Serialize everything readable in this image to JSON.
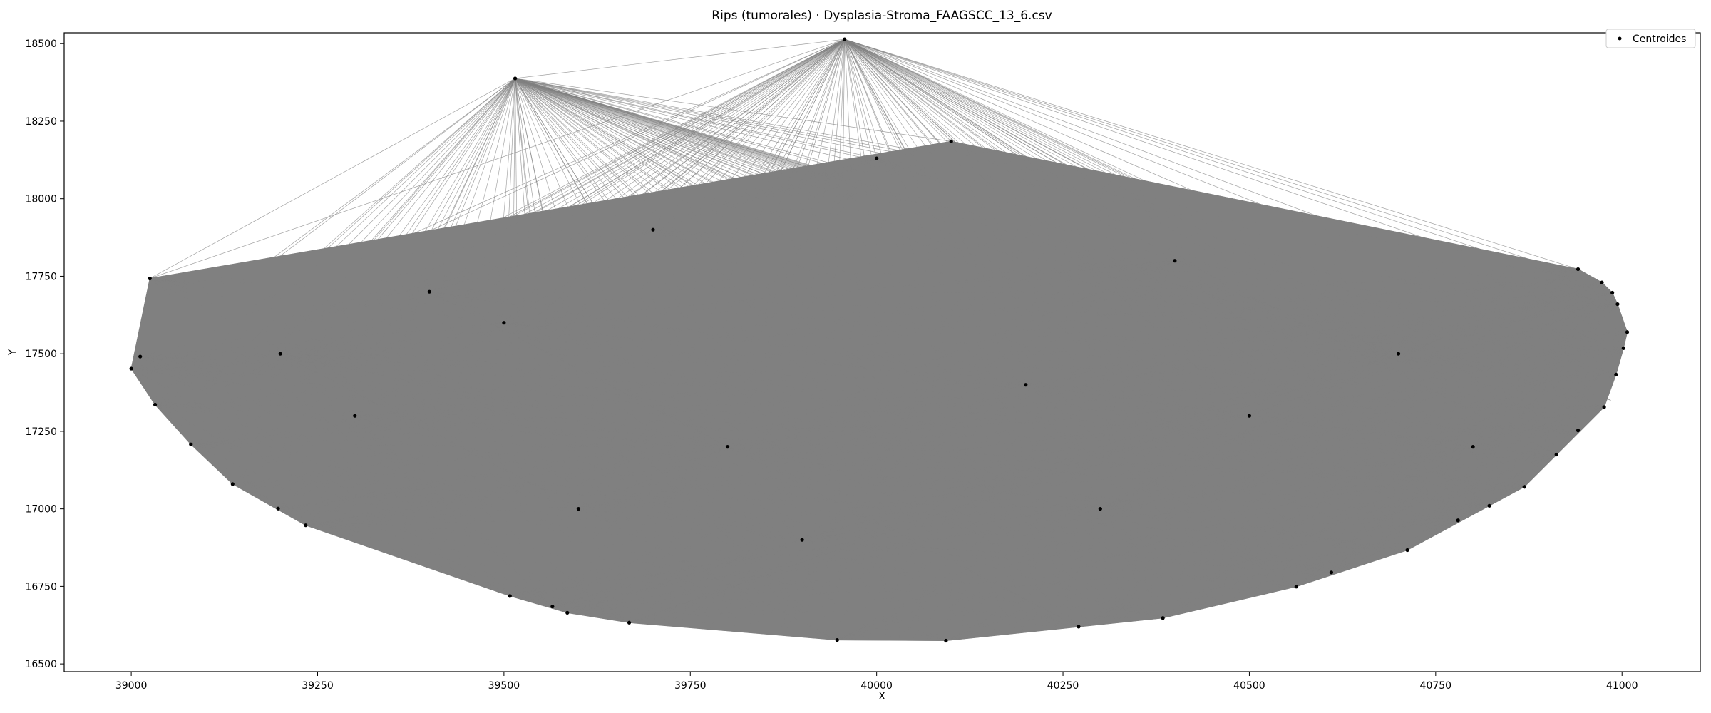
{
  "chart_data": {
    "type": "scatter",
    "title": "Rips (tumorales) · Dysplasia-Stroma_FAAGSCC_13_6.csv",
    "xlabel": "X",
    "ylabel": "Y",
    "xlim": [
      38910,
      41105
    ],
    "ylim": [
      16475,
      18535
    ],
    "xticks": [
      39000,
      39250,
      39500,
      39750,
      40000,
      40250,
      40500,
      40750,
      41000
    ],
    "yticks": [
      16500,
      16750,
      17000,
      17250,
      17500,
      17750,
      18000,
      18250,
      18500
    ],
    "grid": false,
    "legend": {
      "position": "top-right",
      "entries": [
        "Centroides"
      ]
    },
    "colors": {
      "points": "#000000",
      "edges": "#808080",
      "fill": "#808080"
    },
    "series": [
      {
        "name": "Centroides",
        "points": [
          [
            39957,
            18514
          ],
          [
            39515,
            18388
          ],
          [
            39025,
            17743
          ],
          [
            39012,
            17491
          ],
          [
            39000,
            17452
          ],
          [
            39032,
            17336
          ],
          [
            39080,
            17208
          ],
          [
            39136,
            17080
          ],
          [
            39197,
            17001
          ],
          [
            39234,
            16947
          ],
          [
            39508,
            16719
          ],
          [
            39565,
            16685
          ],
          [
            39585,
            16665
          ],
          [
            39668,
            16633
          ],
          [
            39947,
            16577
          ],
          [
            40093,
            16575
          ],
          [
            40271,
            16620
          ],
          [
            40384,
            16648
          ],
          [
            40563,
            16749
          ],
          [
            40610,
            16795
          ],
          [
            40712,
            16867
          ],
          [
            40780,
            16963
          ],
          [
            40822,
            17010
          ],
          [
            40869,
            17071
          ],
          [
            40912,
            17175
          ],
          [
            40941,
            17253
          ],
          [
            40976,
            17328
          ],
          [
            40992,
            17433
          ],
          [
            41002,
            17518
          ],
          [
            41007,
            17570
          ],
          [
            40994,
            17660
          ],
          [
            40987,
            17697
          ],
          [
            40973,
            17730
          ],
          [
            40941,
            17773
          ],
          [
            40100,
            18185
          ],
          [
            40000,
            18130
          ],
          [
            39700,
            17900
          ],
          [
            39500,
            17600
          ],
          [
            39300,
            17300
          ],
          [
            39800,
            17200
          ],
          [
            40200,
            17400
          ],
          [
            40500,
            17300
          ],
          [
            40700,
            17500
          ],
          [
            39900,
            16900
          ],
          [
            40300,
            17000
          ],
          [
            39600,
            17000
          ],
          [
            40800,
            17200
          ],
          [
            39400,
            17700
          ],
          [
            40400,
            17800
          ],
          [
            39200,
            17500
          ]
        ]
      }
    ]
  }
}
